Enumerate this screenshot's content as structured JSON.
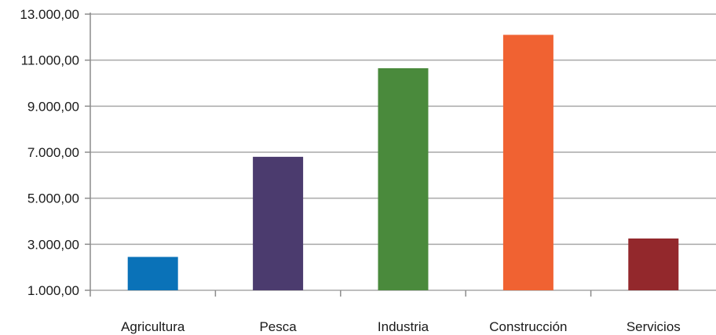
{
  "chart_data": {
    "type": "bar",
    "title": "",
    "xlabel": "",
    "ylabel": "",
    "categories": [
      "Agricultura",
      "Pesca",
      "Industria",
      "Construcción",
      "Servicios"
    ],
    "values": [
      2450,
      6800,
      10650,
      12100,
      3250
    ],
    "colors": [
      "#0a72b8",
      "#4b3b6e",
      "#4a8a3c",
      "#f06232",
      "#93282c"
    ],
    "ylim": [
      1000,
      13000
    ],
    "yticks": [
      1000,
      3000,
      5000,
      7000,
      9000,
      11000,
      13000
    ],
    "ytick_labels": [
      "1.000,00",
      "3.000,00",
      "5.000,00",
      "7.000,00",
      "9.000,00",
      "11.000,00",
      "13.000,00"
    ],
    "grid": true,
    "legend": false
  }
}
